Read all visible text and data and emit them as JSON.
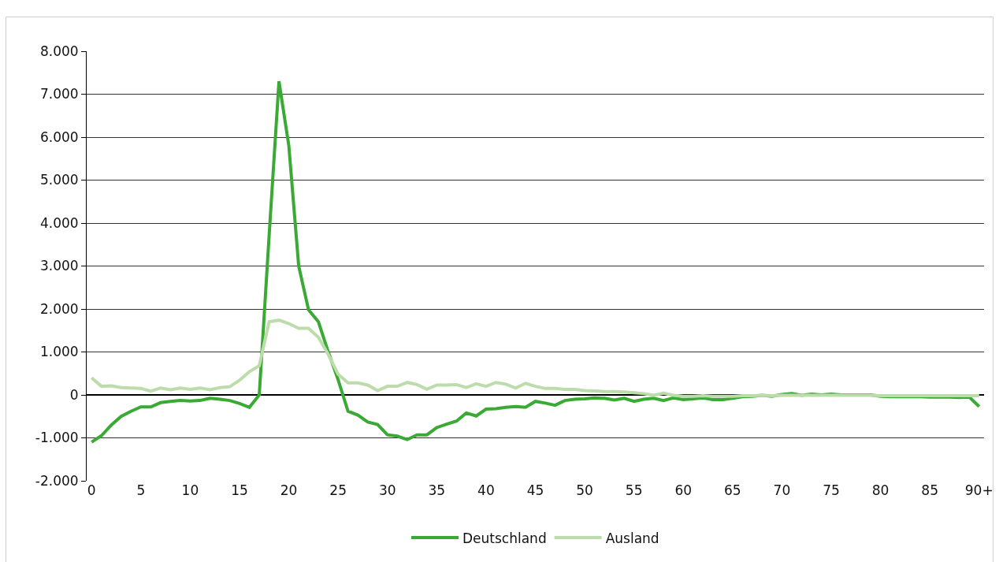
{
  "chart_data": {
    "type": "line",
    "categories": [
      "0",
      null,
      null,
      null,
      null,
      "5",
      null,
      null,
      null,
      null,
      "10",
      null,
      null,
      null,
      null,
      "15",
      null,
      null,
      null,
      null,
      "20",
      null,
      null,
      null,
      null,
      "25",
      null,
      null,
      null,
      null,
      "30",
      null,
      null,
      null,
      null,
      "35",
      null,
      null,
      null,
      null,
      "40",
      null,
      null,
      null,
      null,
      "45",
      null,
      null,
      null,
      null,
      "50",
      null,
      null,
      null,
      null,
      "55",
      null,
      null,
      null,
      null,
      "60",
      null,
      null,
      null,
      null,
      "65",
      null,
      null,
      null,
      null,
      "70",
      null,
      null,
      null,
      null,
      "75",
      null,
      null,
      null,
      null,
      "80",
      null,
      null,
      null,
      null,
      "85",
      null,
      null,
      null,
      null,
      "90+"
    ],
    "series": [
      {
        "name": "Deutschland",
        "color": "#3aaa35",
        "values": [
          -1100,
          -950,
          -700,
          -500,
          -380,
          -280,
          -280,
          -180,
          -150,
          -130,
          -140,
          -130,
          -80,
          -100,
          -130,
          -200,
          -290,
          0,
          3700,
          7300,
          5800,
          3000,
          1980,
          1700,
          1000,
          350,
          -380,
          -470,
          -630,
          -690,
          -930,
          -960,
          -1040,
          -930,
          -930,
          -760,
          -680,
          -610,
          -420,
          -490,
          -330,
          -320,
          -290,
          -270,
          -290,
          -150,
          -190,
          -240,
          -130,
          -100,
          -90,
          -70,
          -80,
          -120,
          -80,
          -150,
          -100,
          -80,
          -130,
          -70,
          -110,
          -90,
          -70,
          -110,
          -110,
          -80,
          -40,
          -30,
          -10,
          -30,
          10,
          30,
          -10,
          20,
          0,
          20,
          0,
          0,
          0,
          0,
          -30,
          -40,
          -40,
          -40,
          -40,
          -50,
          -50,
          -50,
          -60,
          -50,
          -270
        ]
      },
      {
        "name": "Ausland",
        "color": "#bcdcab",
        "values": [
          400,
          200,
          210,
          170,
          160,
          150,
          90,
          160,
          120,
          160,
          130,
          160,
          120,
          170,
          190,
          340,
          540,
          680,
          1700,
          1740,
          1660,
          1550,
          1550,
          1340,
          940,
          480,
          280,
          280,
          230,
          100,
          200,
          200,
          290,
          240,
          130,
          230,
          230,
          240,
          170,
          260,
          200,
          290,
          250,
          160,
          270,
          200,
          150,
          150,
          130,
          130,
          100,
          90,
          80,
          80,
          70,
          50,
          30,
          -10,
          40,
          -10,
          -30,
          -30,
          -20,
          -30,
          -30,
          -30,
          -20,
          -20,
          -10,
          -20,
          -10,
          -10,
          -10,
          -10,
          -10,
          -10,
          -10,
          -10,
          -10,
          -10,
          -20,
          -20,
          -20,
          -20,
          -20,
          -20,
          -20,
          -20,
          -20,
          -20,
          -20
        ]
      }
    ],
    "ylim": [
      -2000,
      8000
    ],
    "yticks": [
      {
        "value": -2000,
        "label": "-2.000"
      },
      {
        "value": -1000,
        "label": "-1.000"
      },
      {
        "value": 0,
        "label": "0"
      },
      {
        "value": 1000,
        "label": "1.000"
      },
      {
        "value": 2000,
        "label": "2.000"
      },
      {
        "value": 3000,
        "label": "3.000"
      },
      {
        "value": 4000,
        "label": "4.000"
      },
      {
        "value": 5000,
        "label": "5.000"
      },
      {
        "value": 6000,
        "label": "6.000"
      },
      {
        "value": 7000,
        "label": "7.000"
      },
      {
        "value": 8000,
        "label": "8.000"
      }
    ],
    "grid": "y",
    "legend": "bottom",
    "marker": "none",
    "line_style": "solid"
  }
}
